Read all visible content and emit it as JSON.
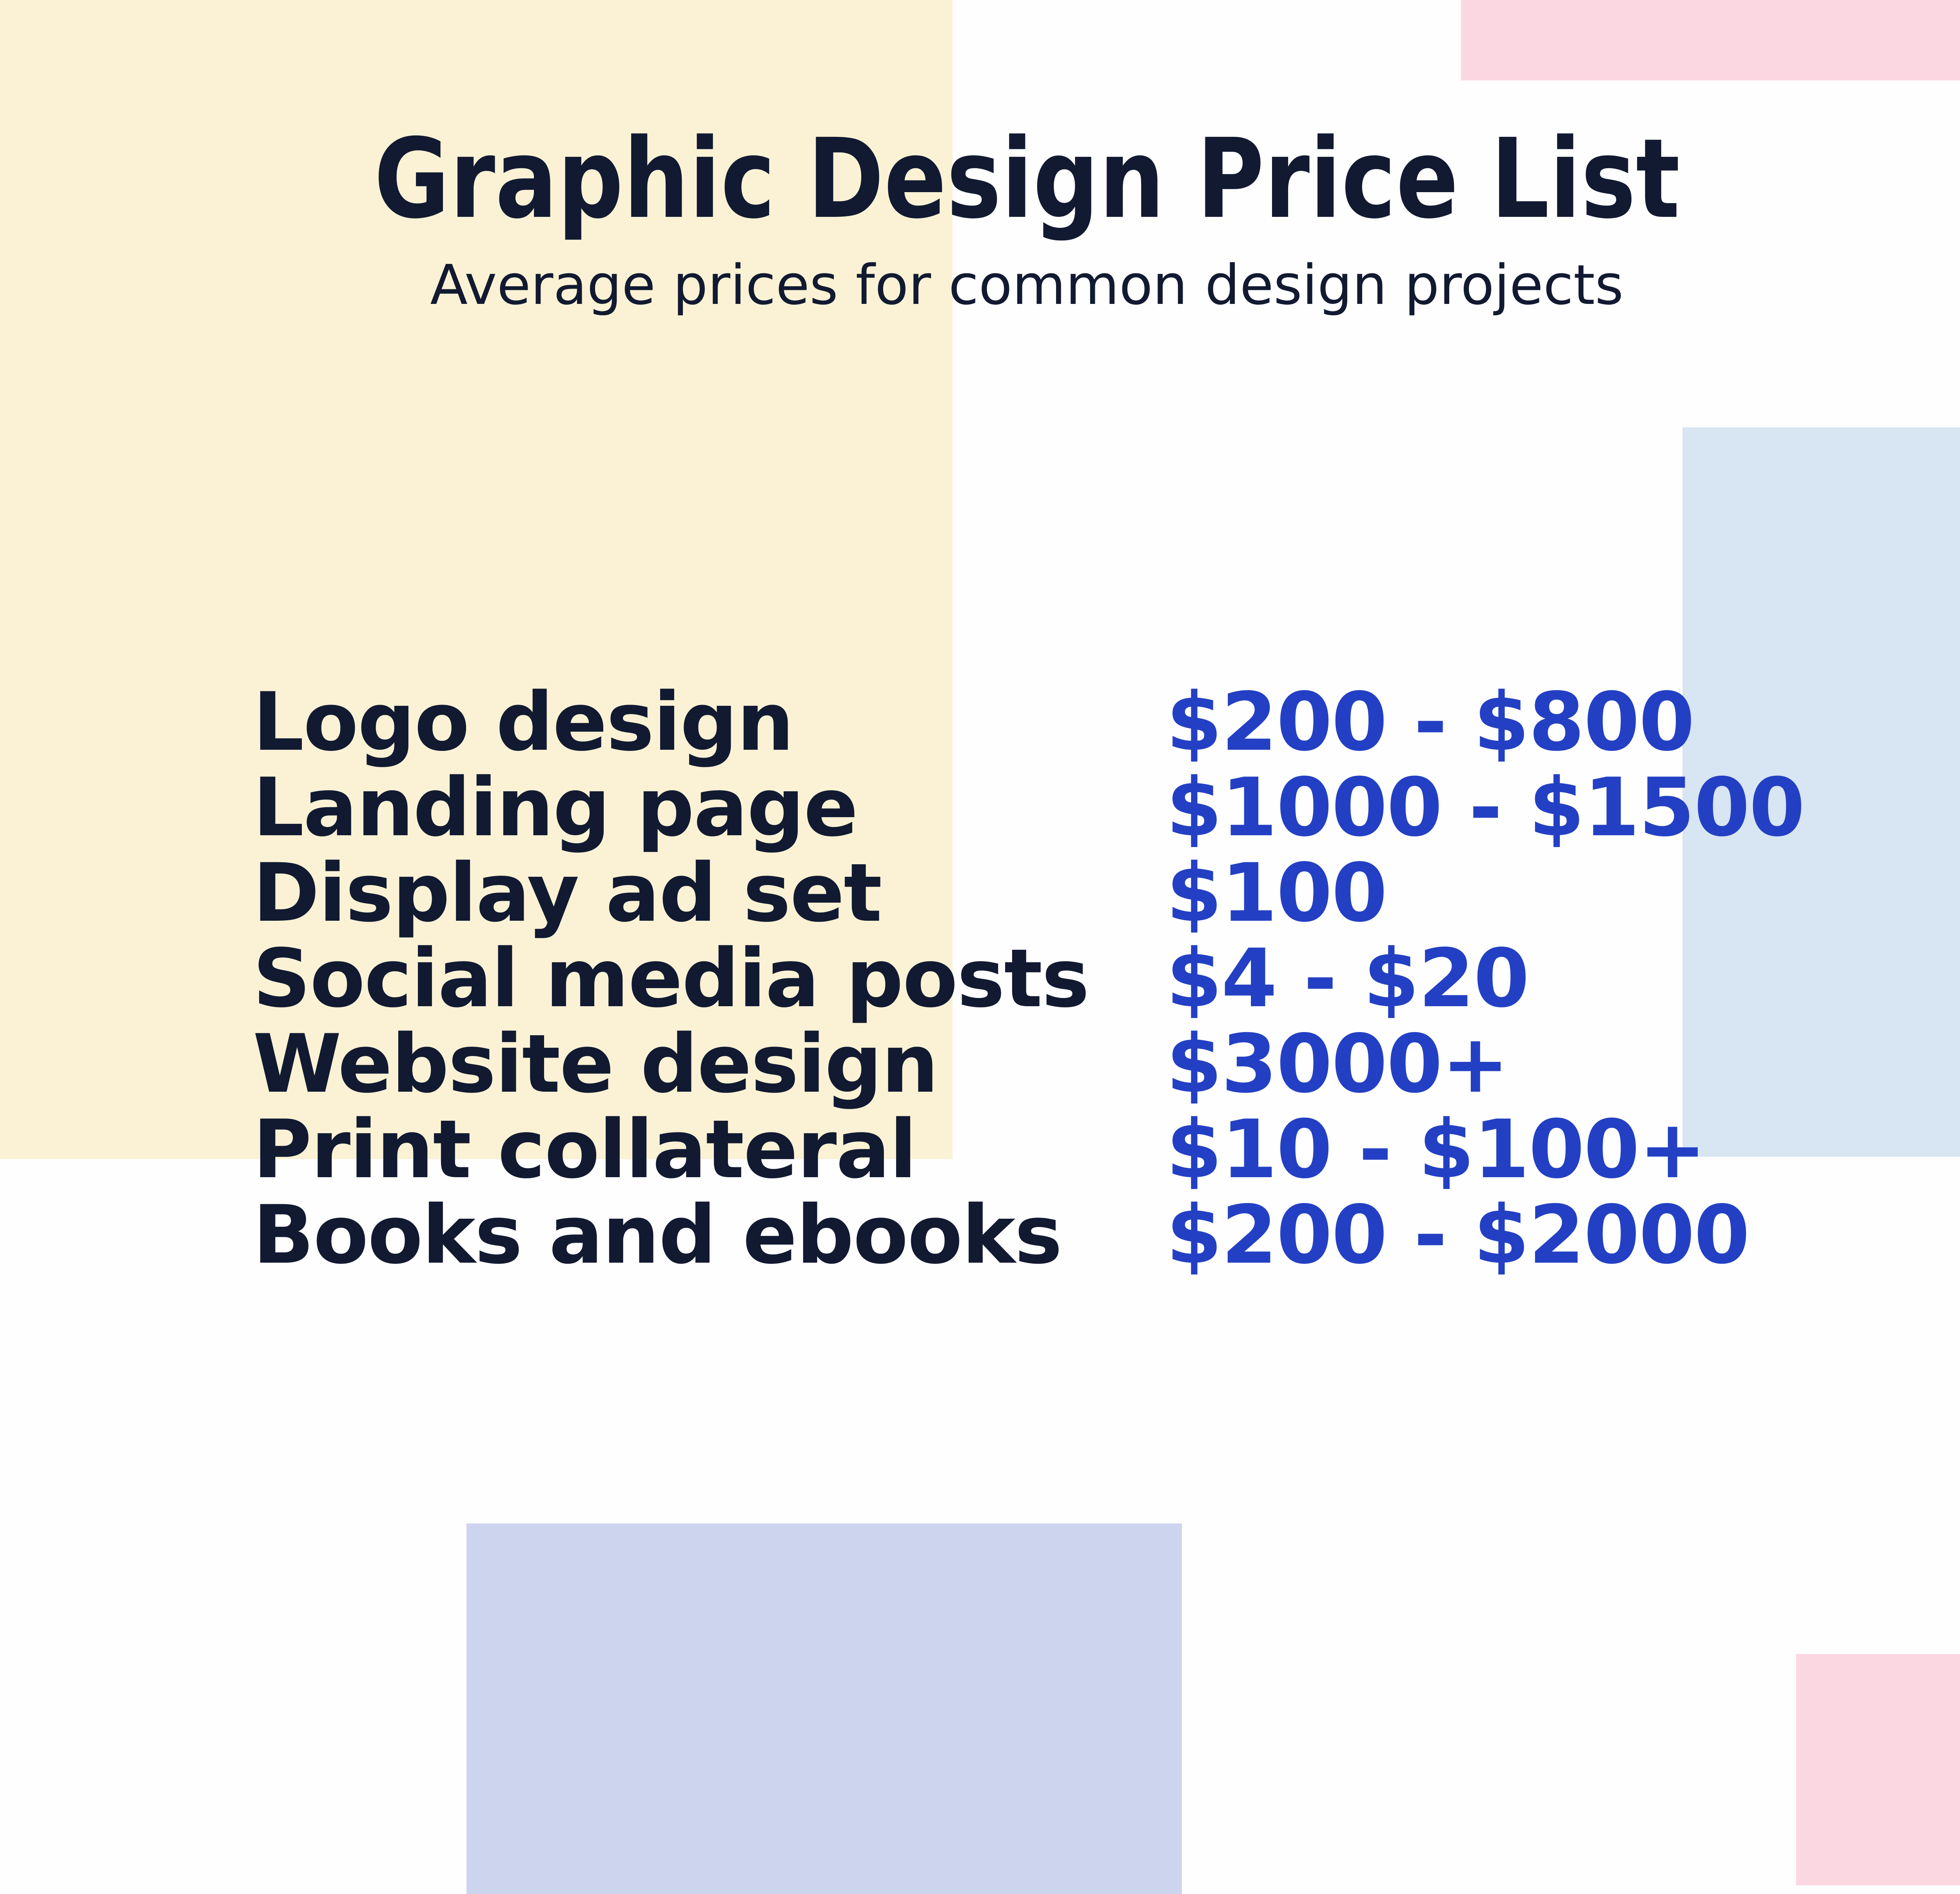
{
  "page": {
    "title": "Graphic Design Price List",
    "subtitle": "Average prices for common design projects"
  },
  "price_list": {
    "items": [
      {
        "label": "Logo design",
        "price": "$200 - $800"
      },
      {
        "label": "Landing page",
        "price": "$1000 - $1500"
      },
      {
        "label": "Display ad set",
        "price": "$100"
      },
      {
        "label": "Social media posts",
        "price": "$4 - $20"
      },
      {
        "label": "Website design",
        "price": "$3000+"
      },
      {
        "label": "Print collateral",
        "price": "$10 - $100+"
      },
      {
        "label": "Books and ebooks",
        "price": "$200 - $2000"
      }
    ]
  },
  "colors": {
    "page_bg": "#fefefe",
    "cream": "#fbf2d5",
    "pink": "#fbd7e2",
    "light_blue": "#d8e5f2",
    "lavender": "#ccd4ee",
    "navy": "#111a31",
    "price_blue": "#2340c4"
  }
}
